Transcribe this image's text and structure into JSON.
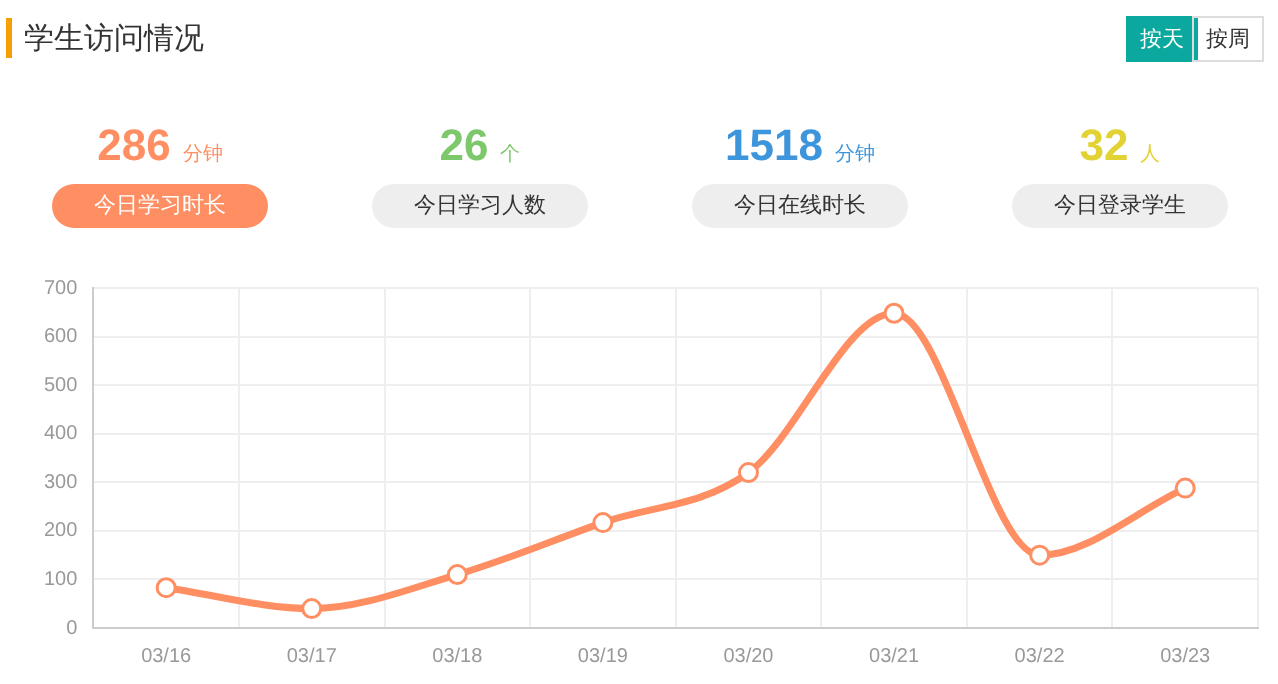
{
  "chart_data": {
    "type": "line",
    "title": "学生访问情况",
    "annotations": [
      "按天",
      "按周",
      "286 分钟",
      "今日学习时长",
      "26 个",
      "今日学习人数",
      "1518 分钟",
      "今日在线时长",
      "32 人",
      "今日登录学生"
    ],
    "categories": [
      "03/16",
      "03/17",
      "03/18",
      "03/19",
      "03/20",
      "03/21",
      "03/22",
      "03/23"
    ],
    "series": [
      {
        "color": "#ff8f63",
        "values": [
          83,
          40,
          110,
          217,
          320,
          648,
          150,
          288
        ]
      }
    ],
    "ylim": [
      0,
      700
    ],
    "yticks": [
      0,
      100,
      200,
      300,
      400,
      500,
      600,
      700
    ],
    "grid": true,
    "legend": false,
    "marker": "circle",
    "line_style": "solid"
  }
}
